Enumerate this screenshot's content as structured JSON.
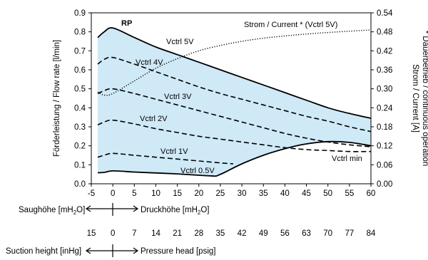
{
  "chart_data": {
    "type": "area",
    "ylabel": "Förderleistung / Flow rate [l/min]",
    "y2label_line1": "Strom / Current [A]",
    "y2label_line2": "* Dauerbetrieb / continuous operation",
    "xlim": [
      -5,
      60
    ],
    "ylim": [
      0,
      0.9
    ],
    "y2lim": [
      0,
      0.54
    ],
    "x_ticks": [
      -5,
      0,
      5,
      10,
      15,
      20,
      25,
      30,
      35,
      40,
      45,
      50,
      55,
      60
    ],
    "y_ticks": [
      "0.0",
      "0.1",
      "0.2",
      "0.3",
      "0.4",
      "0.5",
      "0.6",
      "0.7",
      "0.8",
      "0.9"
    ],
    "y2_ticks": [
      "0.00",
      "0.06",
      "0.12",
      "0.18",
      "0.24",
      "0.30",
      "0.36",
      "0.42",
      "0.48",
      "0.54"
    ],
    "fill_color": "#cfe9f7",
    "series": [
      {
        "name": "Vctrl 5V",
        "style": "solid",
        "points": [
          [
            -3.5,
            0.77
          ],
          [
            -2,
            0.8
          ],
          [
            0,
            0.82
          ],
          [
            5,
            0.77
          ],
          [
            10,
            0.72
          ],
          [
            15,
            0.68
          ],
          [
            20,
            0.64
          ],
          [
            25,
            0.6
          ],
          [
            30,
            0.56
          ],
          [
            35,
            0.52
          ],
          [
            40,
            0.48
          ],
          [
            45,
            0.44
          ],
          [
            50,
            0.4
          ],
          [
            55,
            0.37
          ],
          [
            60,
            0.345
          ]
        ]
      },
      {
        "name": "Vctrl 4V",
        "style": "dashed",
        "points": [
          [
            -3.5,
            0.63
          ],
          [
            -2,
            0.655
          ],
          [
            0,
            0.665
          ],
          [
            5,
            0.63
          ],
          [
            10,
            0.59
          ],
          [
            15,
            0.55
          ],
          [
            20,
            0.51
          ],
          [
            25,
            0.475
          ],
          [
            30,
            0.445
          ],
          [
            35,
            0.415
          ],
          [
            40,
            0.385
          ],
          [
            45,
            0.355
          ],
          [
            50,
            0.33
          ],
          [
            55,
            0.3
          ],
          [
            60,
            0.275
          ]
        ]
      },
      {
        "name": "Vctrl 3V",
        "style": "dashed",
        "points": [
          [
            -3.5,
            0.475
          ],
          [
            -2,
            0.49
          ],
          [
            0,
            0.5
          ],
          [
            5,
            0.475
          ],
          [
            10,
            0.445
          ],
          [
            15,
            0.415
          ],
          [
            20,
            0.385
          ],
          [
            25,
            0.355
          ],
          [
            30,
            0.325
          ],
          [
            35,
            0.295
          ],
          [
            40,
            0.265
          ],
          [
            45,
            0.24
          ],
          [
            50,
            0.22
          ],
          [
            55,
            0.205
          ],
          [
            60,
            0.195
          ]
        ]
      },
      {
        "name": "Vctrl 2V",
        "style": "dashed",
        "points": [
          [
            -3.5,
            0.31
          ],
          [
            -2,
            0.325
          ],
          [
            0,
            0.335
          ],
          [
            5,
            0.315
          ],
          [
            10,
            0.29
          ],
          [
            15,
            0.27
          ],
          [
            20,
            0.25
          ],
          [
            25,
            0.235
          ],
          [
            30,
            0.22
          ],
          [
            35,
            0.205
          ],
          [
            40,
            0.19
          ],
          [
            45,
            0.18
          ],
          [
            50,
            0.175
          ],
          [
            55,
            0.17
          ],
          [
            60,
            0.17
          ]
        ]
      },
      {
        "name": "Vctrl 1V",
        "style": "dashed",
        "points": [
          [
            -3.5,
            0.14
          ],
          [
            -2,
            0.15
          ],
          [
            0,
            0.16
          ],
          [
            5,
            0.15
          ],
          [
            10,
            0.14
          ],
          [
            15,
            0.13
          ],
          [
            20,
            0.12
          ],
          [
            25,
            0.11
          ],
          [
            28,
            0.105
          ]
        ]
      },
      {
        "name": "Vctrl 0.5V",
        "style": "solid",
        "points": [
          [
            -3.5,
            0.058
          ],
          [
            -2,
            0.06
          ],
          [
            0,
            0.068
          ],
          [
            5,
            0.062
          ],
          [
            10,
            0.057
          ],
          [
            15,
            0.052
          ],
          [
            20,
            0.045
          ],
          [
            24,
            0.04
          ]
        ]
      },
      {
        "name": "Vctrl min",
        "style": "solid",
        "points": [
          [
            24,
            0.04
          ],
          [
            26,
            0.06
          ],
          [
            30,
            0.105
          ],
          [
            35,
            0.15
          ],
          [
            40,
            0.185
          ],
          [
            45,
            0.21
          ],
          [
            50,
            0.222
          ],
          [
            55,
            0.218
          ],
          [
            60,
            0.2
          ]
        ]
      },
      {
        "name": "Strom / Current * (Vctrl 5V)",
        "style": "dotted",
        "axis": "y2",
        "points": [
          [
            -3.5,
            0.29
          ],
          [
            -2,
            0.28
          ],
          [
            0,
            0.285
          ],
          [
            5,
            0.325
          ],
          [
            10,
            0.365
          ],
          [
            15,
            0.395
          ],
          [
            20,
            0.42
          ],
          [
            25,
            0.437
          ],
          [
            30,
            0.45
          ],
          [
            35,
            0.46
          ],
          [
            40,
            0.467
          ],
          [
            45,
            0.473
          ],
          [
            50,
            0.478
          ],
          [
            55,
            0.482
          ],
          [
            60,
            0.486
          ]
        ]
      }
    ],
    "annotations": {
      "rp": "RP",
      "current": "Strom / Current * (Vctrl 5V)",
      "v5": "Vctrl 5V",
      "v4": "Vctrl 4V",
      "v3": "Vctrl 3V",
      "v2": "Vctrl 2V",
      "v1": "Vctrl 1V",
      "v05": "Vctrl 0.5V",
      "vmin": "Vctrl min"
    }
  },
  "secondary_axes": {
    "label_left_1": "Saughöhe [mH",
    "label_left_1_sub": "2",
    "label_left_1_end": "O]",
    "label_right_1": "Druckhöhe [mH",
    "label_right_1_sub": "2",
    "label_right_1_end": "O]",
    "imperial_ticks": [
      "15",
      "0",
      "7",
      "14",
      "21",
      "28",
      "35",
      "42",
      "49",
      "56",
      "63",
      "70",
      "77",
      "84"
    ],
    "label_left_2": "Suction height [inHg]",
    "label_right_2": "Pressure head [psig]"
  }
}
